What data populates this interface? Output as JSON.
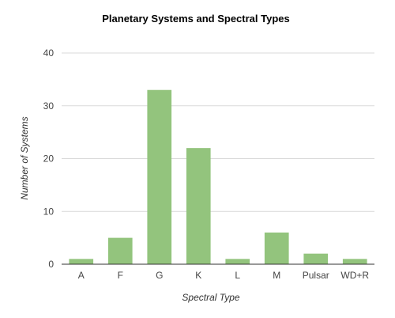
{
  "chart_data": {
    "type": "bar",
    "title": "Planetary Systems and Spectral Types",
    "xlabel": "Spectral Type",
    "ylabel": "Number of Systems",
    "categories": [
      "A",
      "F",
      "G",
      "K",
      "L",
      "M",
      "Pulsar",
      "WD+R"
    ],
    "values": [
      1,
      5,
      33,
      22,
      1,
      6,
      2,
      1
    ],
    "ylim": [
      0,
      40
    ],
    "yticks": [
      0,
      10,
      20,
      30,
      40
    ],
    "grid": true,
    "legend": "none",
    "bar_color": "#93c47d"
  }
}
